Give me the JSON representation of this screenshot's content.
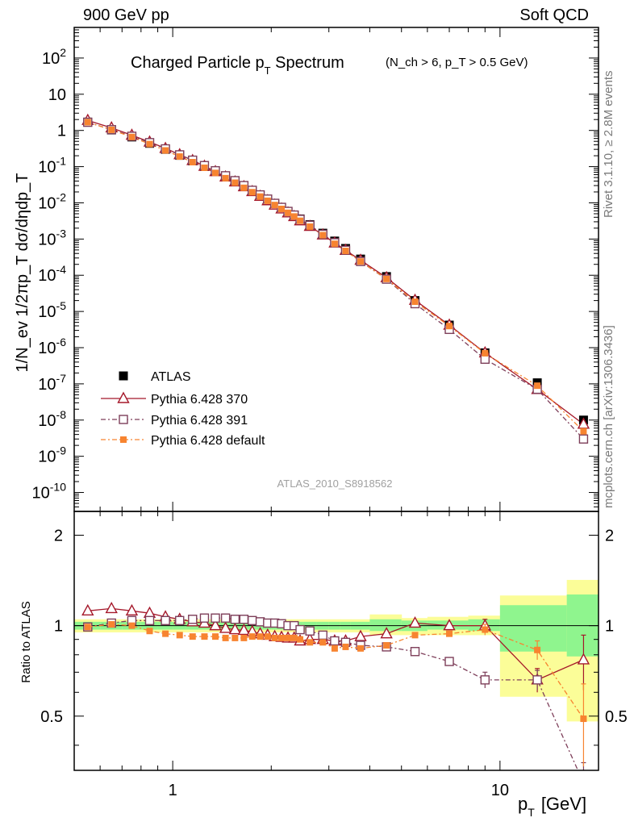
{
  "header": {
    "left": "900 GeV pp",
    "right": "Soft QCD"
  },
  "side_labels": {
    "rivet": "Rivet 3.1.10, ≥ 2.8M events",
    "mcplots": "mcplots.cern.ch [arXiv:1306.3436]"
  },
  "colors": {
    "atlas": "#000000",
    "p370": "#a5182a",
    "p391": "#7e3f5a",
    "pdefault": "#f78430",
    "band_green": "#8ff58e",
    "band_yellow": "#fbfd98"
  },
  "chart_data": [
    {
      "type": "scatter",
      "panel": "main",
      "title": "Charged Particle pT Spectrum",
      "title_main": "Charged Particle p",
      "title_sub": "T",
      "title_rest": " Spectrum",
      "title_cuts": "(N_ch > 6, p_T > 0.5 GeV)",
      "ylabel": "1/N_ev 1/2πp_T dσ/dηdp_T",
      "yscale": "log",
      "ylim": [
        3e-11,
        700
      ],
      "xscale": "log",
      "xlim": [
        0.5,
        20
      ],
      "y_ticks": [
        "10^-10",
        "10^-9",
        "10^-8",
        "10^-7",
        "10^-6",
        "10^-5",
        "10^-4",
        "10^-3",
        "10^-2",
        "10^-1",
        "1",
        "10",
        "10^2"
      ],
      "watermark": "ATLAS_2010_S8918562",
      "legend": [
        "ATLAS",
        "Pythia 6.428 370",
        "Pythia 6.428 391",
        "Pythia 6.428 default"
      ],
      "x": [
        0.55,
        0.65,
        0.75,
        0.85,
        0.95,
        1.05,
        1.15,
        1.25,
        1.35,
        1.45,
        1.55,
        1.65,
        1.75,
        1.85,
        1.95,
        2.05,
        2.15,
        2.25,
        2.35,
        2.45,
        2.625,
        2.875,
        3.125,
        3.375,
        3.75,
        4.5,
        5.5,
        7.0,
        9.0,
        13.0,
        18.0
      ],
      "series": [
        {
          "name": "ATLAS",
          "values": [
            1.7,
            1.03,
            0.66,
            0.44,
            0.3,
            0.205,
            0.144,
            0.101,
            0.073,
            0.053,
            0.039,
            0.029,
            0.0215,
            0.0162,
            0.0124,
            0.0095,
            0.0074,
            0.0058,
            0.0046,
            0.0036,
            0.0025,
            0.00145,
            0.00088,
            0.00055,
            0.00028,
            9.2e-05,
            2e-05,
            4.2e-06,
            7.2e-07,
            1.07e-07,
            1e-08
          ]
        },
        {
          "name": "Pythia 6.428 370",
          "values": [
            1.9,
            1.18,
            0.74,
            0.48,
            0.32,
            0.215,
            0.148,
            0.103,
            0.073,
            0.052,
            0.038,
            0.028,
            0.0205,
            0.0152,
            0.0115,
            0.0087,
            0.0068,
            0.0053,
            0.0042,
            0.0032,
            0.00225,
            0.0013,
            0.00078,
            0.00049,
            0.00026,
            8.6e-05,
            2.04e-05,
            4.2e-06,
            7.2e-07,
            7e-08,
            7.7e-09
          ]
        },
        {
          "name": "Pythia 6.428 391",
          "values": [
            1.68,
            1.05,
            0.69,
            0.46,
            0.31,
            0.212,
            0.151,
            0.107,
            0.077,
            0.056,
            0.041,
            0.03,
            0.0222,
            0.0166,
            0.0127,
            0.0097,
            0.0075,
            0.0058,
            0.0046,
            0.0035,
            0.0024,
            0.00135,
            0.00079,
            0.00049,
            0.00024,
            7.8e-05,
            1.64e-05,
            3.2e-06,
            4.8e-07,
            7.1e-08,
            3e-09
          ]
        },
        {
          "name": "Pythia 6.428 default",
          "values": [
            1.69,
            1.04,
            0.66,
            0.42,
            0.28,
            0.19,
            0.133,
            0.093,
            0.067,
            0.048,
            0.036,
            0.026,
            0.0197,
            0.0149,
            0.0114,
            0.0087,
            0.0068,
            0.0053,
            0.0042,
            0.0032,
            0.0022,
            0.00128,
            0.00074,
            0.00047,
            0.00024,
            7.9e-05,
            1.86e-05,
            3.95e-06,
            7e-07,
            8.9e-08,
            4.9e-09
          ]
        }
      ]
    },
    {
      "type": "scatter",
      "panel": "ratio",
      "ylabel": "Ratio to ATLAS",
      "xlabel": "p_T [GeV]",
      "xlabel_main": "p",
      "xlabel_sub": "T",
      "xlabel_unit": "[GeV]",
      "xscale": "log",
      "xlim": [
        0.5,
        20
      ],
      "ylim": [
        0.33,
        2.4
      ],
      "y_ticks": [
        "0.5",
        "1",
        "2"
      ],
      "x_ticks": [
        "1",
        "10"
      ],
      "x_edges": [
        0.5,
        0.6,
        0.7,
        0.8,
        0.9,
        1.0,
        1.1,
        1.2,
        1.3,
        1.4,
        1.5,
        1.6,
        1.7,
        1.8,
        1.9,
        2.0,
        2.1,
        2.2,
        2.3,
        2.4,
        2.5,
        2.75,
        3.0,
        3.25,
        3.5,
        4.0,
        5.0,
        6.0,
        8.0,
        10.0,
        16.0,
        20.0
      ],
      "band_green": [
        [
          0.97,
          1.03
        ],
        [
          0.97,
          1.03
        ],
        [
          0.97,
          1.03
        ],
        [
          0.97,
          1.03
        ],
        [
          0.97,
          1.03
        ],
        [
          0.97,
          1.03
        ],
        [
          0.97,
          1.03
        ],
        [
          0.97,
          1.03
        ],
        [
          0.97,
          1.03
        ],
        [
          0.97,
          1.03
        ],
        [
          0.97,
          1.03
        ],
        [
          0.97,
          1.03
        ],
        [
          0.97,
          1.03
        ],
        [
          0.97,
          1.03
        ],
        [
          0.97,
          1.03
        ],
        [
          0.97,
          1.03
        ],
        [
          0.97,
          1.03
        ],
        [
          0.97,
          1.03
        ],
        [
          0.97,
          1.03
        ],
        [
          0.97,
          1.03
        ],
        [
          0.97,
          1.03
        ],
        [
          0.97,
          1.03
        ],
        [
          0.97,
          1.03
        ],
        [
          0.97,
          1.03
        ],
        [
          0.97,
          1.03
        ],
        [
          0.96,
          1.05
        ],
        [
          0.96,
          1.04
        ],
        [
          0.97,
          1.04
        ],
        [
          0.96,
          1.05
        ],
        [
          0.82,
          1.17
        ],
        [
          0.79,
          1.27
        ]
      ],
      "band_yellow": [
        [
          0.95,
          1.05
        ],
        [
          0.95,
          1.05
        ],
        [
          0.95,
          1.05
        ],
        [
          0.95,
          1.05
        ],
        [
          0.95,
          1.05
        ],
        [
          0.95,
          1.05
        ],
        [
          0.95,
          1.05
        ],
        [
          0.95,
          1.05
        ],
        [
          0.95,
          1.05
        ],
        [
          0.95,
          1.05
        ],
        [
          0.95,
          1.05
        ],
        [
          0.95,
          1.05
        ],
        [
          0.95,
          1.05
        ],
        [
          0.95,
          1.05
        ],
        [
          0.95,
          1.05
        ],
        [
          0.95,
          1.05
        ],
        [
          0.95,
          1.05
        ],
        [
          0.95,
          1.05
        ],
        [
          0.95,
          1.05
        ],
        [
          0.95,
          1.05
        ],
        [
          0.95,
          1.05
        ],
        [
          0.95,
          1.05
        ],
        [
          0.95,
          1.05
        ],
        [
          0.95,
          1.05
        ],
        [
          0.95,
          1.05
        ],
        [
          0.93,
          1.09
        ],
        [
          0.93,
          1.06
        ],
        [
          0.93,
          1.07
        ],
        [
          0.93,
          1.08
        ],
        [
          0.58,
          1.26
        ],
        [
          0.48,
          1.42
        ]
      ],
      "x": [
        0.55,
        0.65,
        0.75,
        0.85,
        0.95,
        1.05,
        1.15,
        1.25,
        1.35,
        1.45,
        1.55,
        1.65,
        1.75,
        1.85,
        1.95,
        2.05,
        2.15,
        2.25,
        2.35,
        2.45,
        2.625,
        2.875,
        3.125,
        3.375,
        3.75,
        4.5,
        5.5,
        7.0,
        9.0,
        13.0,
        18.0
      ],
      "series": [
        {
          "name": "Pythia 6.428 370",
          "values": [
            1.12,
            1.14,
            1.12,
            1.1,
            1.07,
            1.05,
            1.03,
            1.02,
            1.0,
            0.98,
            0.97,
            0.965,
            0.955,
            0.94,
            0.93,
            0.92,
            0.915,
            0.91,
            0.91,
            0.89,
            0.9,
            0.9,
            0.89,
            0.89,
            0.92,
            0.94,
            1.02,
            1.0,
            1.0,
            0.66,
            0.77
          ],
          "err": [
            0,
            0,
            0,
            0,
            0,
            0,
            0,
            0,
            0,
            0,
            0,
            0,
            0,
            0,
            0,
            0,
            0,
            0,
            0,
            0,
            0,
            0,
            0,
            0,
            0,
            0,
            0,
            0,
            0.05,
            0.06,
            0.16
          ]
        },
        {
          "name": "Pythia 6.428 391",
          "values": [
            0.99,
            1.02,
            1.04,
            1.04,
            1.04,
            1.04,
            1.05,
            1.06,
            1.06,
            1.06,
            1.05,
            1.05,
            1.04,
            1.03,
            1.02,
            1.02,
            1.015,
            1.0,
            1.0,
            0.97,
            0.96,
            0.93,
            0.89,
            0.88,
            0.86,
            0.85,
            0.82,
            0.76,
            0.66,
            0.66,
            0.3
          ],
          "err": [
            0,
            0,
            0,
            0,
            0,
            0,
            0,
            0,
            0,
            0,
            0,
            0,
            0,
            0,
            0,
            0,
            0,
            0,
            0,
            0,
            0,
            0,
            0,
            0,
            0,
            0,
            0,
            0,
            0.04,
            0.05,
            0.05
          ]
        },
        {
          "name": "Pythia 6.428 default",
          "values": [
            0.99,
            1.01,
            1.0,
            0.96,
            0.94,
            0.93,
            0.92,
            0.92,
            0.92,
            0.91,
            0.91,
            0.91,
            0.92,
            0.92,
            0.92,
            0.91,
            0.91,
            0.91,
            0.91,
            0.9,
            0.88,
            0.88,
            0.84,
            0.85,
            0.84,
            0.86,
            0.93,
            0.94,
            0.97,
            0.83,
            0.49
          ],
          "err": [
            0,
            0,
            0,
            0,
            0,
            0,
            0,
            0,
            0,
            0,
            0,
            0,
            0,
            0,
            0,
            0,
            0,
            0,
            0,
            0,
            0,
            0,
            0,
            0,
            0,
            0,
            0,
            0,
            0.04,
            0.06,
            0.15
          ]
        }
      ]
    }
  ]
}
